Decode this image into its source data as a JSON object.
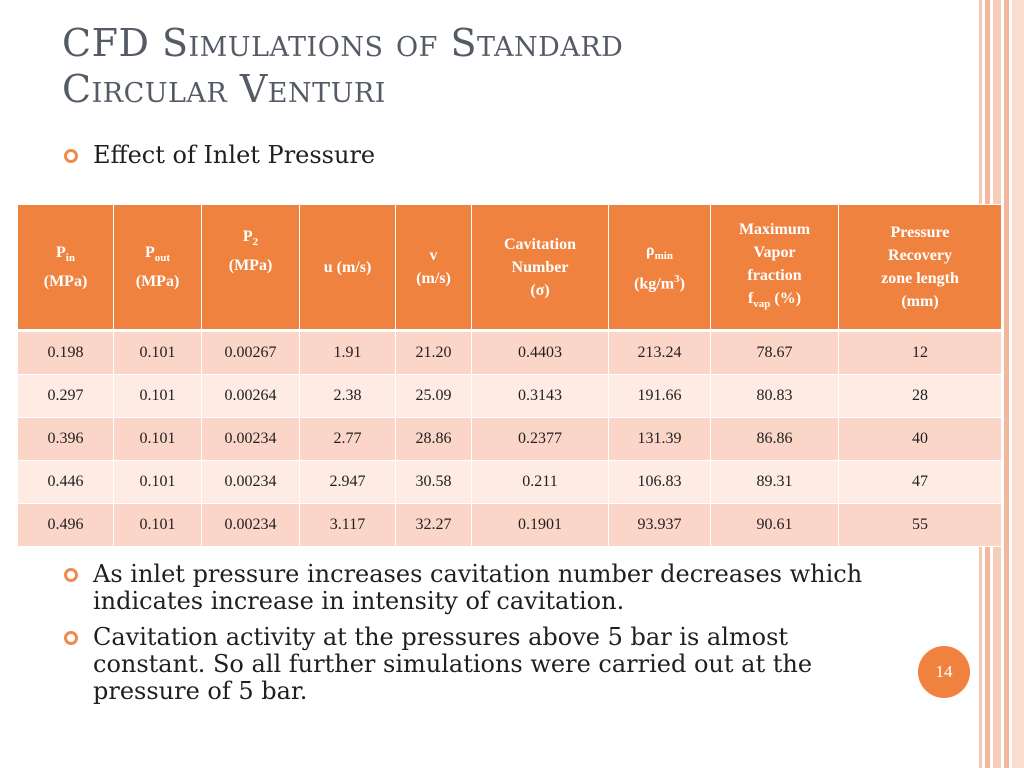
{
  "slide": {
    "title_line1": "CFD Simulations of Standard",
    "title_line2": "Circular Venturi",
    "bullet1": "Effect of Inlet Pressure",
    "bullet2": "As inlet pressure increases cavitation number decreases which indicates increase in intensity of cavitation.",
    "bullet3": "Cavitation activity at the pressures above 5 bar is almost constant. So all further simulations were carried out at the pressure of 5 bar.",
    "page_number": "14"
  },
  "table": {
    "headers": [
      {
        "main": "P",
        "sub": "in",
        "unit": "(MPa)"
      },
      {
        "main": "P",
        "sub": "out",
        "unit": "(MPa)"
      },
      {
        "main": "P",
        "sub": "2",
        "unit": "(MPa)"
      },
      {
        "main": "u (m/s)"
      },
      {
        "main": "v",
        "unit": "(m/s)"
      },
      {
        "line1": "Cavitation",
        "line2": "Number",
        "line3": "(σ)"
      },
      {
        "main": "ρ",
        "sub": "min",
        "unit_pre": "(kg/m",
        "sup": "3",
        "unit_post": ")"
      },
      {
        "line1": "Maximum",
        "line2": "Vapor",
        "line3": "fraction",
        "line4_main": "f",
        "line4_sub": "vap",
        "line4_post": " (%)"
      },
      {
        "line1": "Pressure",
        "line2": "Recovery",
        "line3": "zone length",
        "line4": "(mm)"
      }
    ],
    "rows": [
      [
        "0.198",
        "0.101",
        "0.00267",
        "1.91",
        "21.20",
        "0.4403",
        "213.24",
        "78.67",
        "12"
      ],
      [
        "0.297",
        "0.101",
        "0.00264",
        "2.38",
        "25.09",
        "0.3143",
        "191.66",
        "80.83",
        "28"
      ],
      [
        "0.396",
        "0.101",
        "0.00234",
        "2.77",
        "28.86",
        "0.2377",
        "131.39",
        "86.86",
        "40"
      ],
      [
        "0.446",
        "0.101",
        "0.00234",
        "2.947",
        "30.58",
        "0.211",
        "106.83",
        "89.31",
        "47"
      ],
      [
        "0.496",
        "0.101",
        "0.00234",
        "3.117",
        "32.27",
        "0.1901",
        "93.937",
        "90.61",
        "55"
      ]
    ]
  },
  "colors": {
    "accent": "#f0823f",
    "row_odd": "#fbd6c8",
    "row_even": "#fdebe4",
    "title": "#555b66"
  },
  "icons": {
    "bullet": "circle-bullet-icon"
  }
}
